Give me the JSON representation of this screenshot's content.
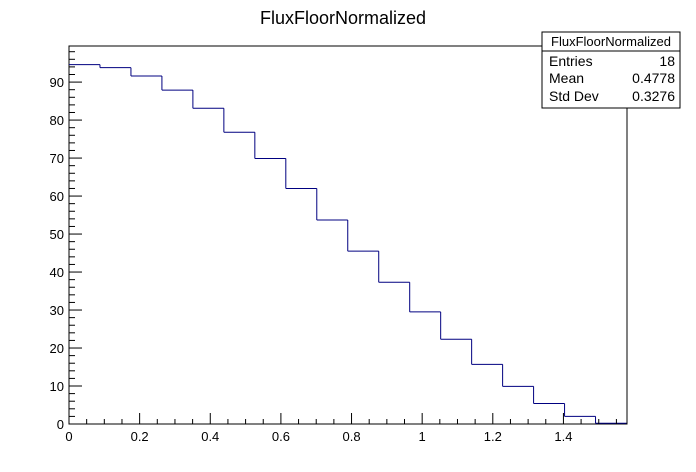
{
  "chart_data": {
    "type": "histogram",
    "title": "FluxFloorNormalized",
    "xlabel": "",
    "ylabel": "",
    "xlim": [
      0,
      1.58
    ],
    "ylim": [
      0,
      99.5
    ],
    "grid": false,
    "x_ticks": [
      0,
      0.2,
      0.4,
      0.6,
      0.8,
      1,
      1.2,
      1.4
    ],
    "x_tick_labels": [
      "0",
      "0.2",
      "0.4",
      "0.6",
      "0.8",
      "1",
      "1.2",
      "1.4"
    ],
    "y_ticks": [
      0,
      10,
      20,
      30,
      40,
      50,
      60,
      70,
      80,
      90
    ],
    "y_tick_labels": [
      "0",
      "10",
      "20",
      "30",
      "40",
      "50",
      "60",
      "70",
      "80",
      "90"
    ],
    "bin_edges": [
      0,
      0.0877,
      0.1754,
      0.2631,
      0.3508,
      0.4385,
      0.5262,
      0.6139,
      0.7016,
      0.7893,
      0.877,
      0.9647,
      1.0524,
      1.1401,
      1.2278,
      1.3155,
      1.4032,
      1.4909,
      1.5786
    ],
    "values": [
      94.6,
      93.8,
      91.6,
      87.9,
      83.1,
      76.8,
      69.9,
      62.0,
      53.7,
      45.5,
      37.3,
      29.5,
      22.3,
      15.7,
      9.9,
      5.4,
      2.0,
      0.2
    ],
    "color": "#000080"
  },
  "stats_box": {
    "title": "FluxFloorNormalized",
    "rows": [
      {
        "label": "Entries",
        "value": "18"
      },
      {
        "label": "Mean",
        "value": "0.4778"
      },
      {
        "label": "Std Dev",
        "value": "0.3276"
      }
    ]
  }
}
